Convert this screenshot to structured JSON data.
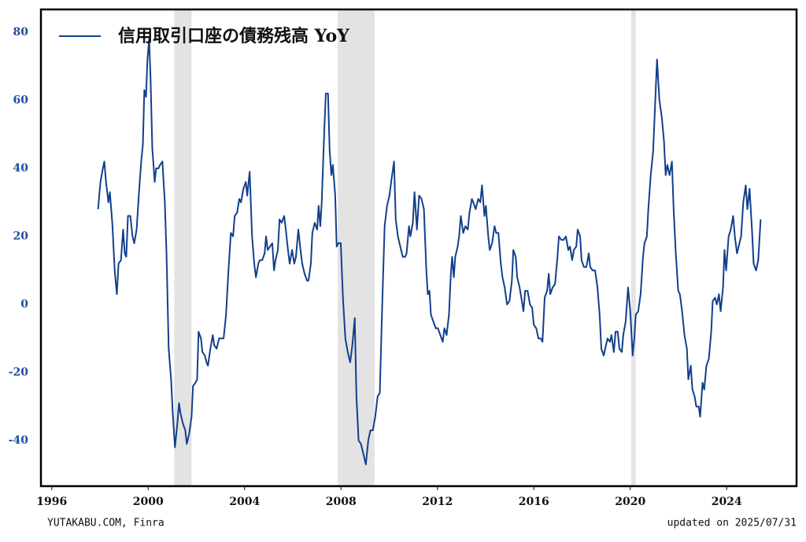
{
  "chart_data": {
    "type": "line",
    "footer_left": "YUTAKABU.COM, Finra",
    "footer_right": "updated on 2025/07/31",
    "xlim": [
      1995.55,
      2026.9
    ],
    "ylim": [
      -53.4,
      86.7
    ],
    "xticks": [
      1996,
      2000,
      2004,
      2008,
      2012,
      2016,
      2020,
      2024
    ],
    "yticks": [
      -40,
      -20,
      0,
      20,
      40,
      60,
      80
    ],
    "legend": "upper left",
    "shaded_periods": [
      {
        "start": 2001.08,
        "end": 2001.8
      },
      {
        "start": 2007.86,
        "end": 2009.39
      },
      {
        "start": 2020.04,
        "end": 2020.23
      }
    ],
    "shade_color": "#e3e3e3",
    "x": [
      1997.92,
      1998.02,
      1998.12,
      1998.18,
      1998.25,
      1998.35,
      1998.41,
      1998.51,
      1998.61,
      1998.7,
      1998.77,
      1998.87,
      1998.96,
      1999.03,
      1999.09,
      1999.16,
      1999.26,
      1999.35,
      1999.42,
      1999.52,
      1999.62,
      1999.71,
      1999.78,
      1999.84,
      1999.91,
      1999.97,
      2000.04,
      2000.1,
      2000.17,
      2000.27,
      2000.33,
      2000.43,
      2000.49,
      2000.59,
      2000.69,
      2000.76,
      2000.85,
      2000.95,
      2001.02,
      2001.11,
      2001.21,
      2001.28,
      2001.34,
      2001.44,
      2001.54,
      2001.6,
      2001.7,
      2001.8,
      2001.86,
      2001.96,
      2002.03,
      2002.09,
      2002.19,
      2002.25,
      2002.35,
      2002.42,
      2002.48,
      2002.58,
      2002.68,
      2002.74,
      2002.84,
      2002.94,
      2003.04,
      2003.13,
      2003.23,
      2003.33,
      2003.43,
      2003.52,
      2003.59,
      2003.69,
      2003.78,
      2003.85,
      2003.95,
      2004.05,
      2004.11,
      2004.21,
      2004.31,
      2004.4,
      2004.47,
      2004.57,
      2004.63,
      2004.73,
      2004.83,
      2004.89,
      2004.96,
      2005.05,
      2005.15,
      2005.22,
      2005.28,
      2005.38,
      2005.45,
      2005.54,
      2005.64,
      2005.71,
      2005.8,
      2005.87,
      2005.97,
      2006.06,
      2006.13,
      2006.23,
      2006.32,
      2006.39,
      2006.49,
      2006.59,
      2006.65,
      2006.75,
      2006.81,
      2006.91,
      2007.01,
      2007.07,
      2007.14,
      2007.2,
      2007.3,
      2007.37,
      2007.46,
      2007.53,
      2007.6,
      2007.66,
      2007.76,
      2007.82,
      2007.89,
      2007.99,
      2008.08,
      2008.18,
      2008.28,
      2008.38,
      2008.47,
      2008.57,
      2008.64,
      2008.73,
      2008.83,
      2008.93,
      2009.03,
      2009.13,
      2009.22,
      2009.32,
      2009.42,
      2009.52,
      2009.61,
      2009.71,
      2009.81,
      2009.91,
      2010.01,
      2010.1,
      2010.2,
      2010.27,
      2010.36,
      2010.46,
      2010.56,
      2010.66,
      2010.72,
      2010.82,
      2010.88,
      2010.98,
      2011.05,
      2011.15,
      2011.24,
      2011.34,
      2011.44,
      2011.54,
      2011.6,
      2011.67,
      2011.73,
      2011.83,
      2011.93,
      2012.02,
      2012.12,
      2012.22,
      2012.29,
      2012.38,
      2012.48,
      2012.55,
      2012.61,
      2012.68,
      2012.74,
      2012.84,
      2012.9,
      2012.97,
      2013.07,
      2013.16,
      2013.26,
      2013.33,
      2013.43,
      2013.49,
      2013.59,
      2013.69,
      2013.78,
      2013.85,
      2013.95,
      2014.01,
      2014.11,
      2014.17,
      2014.27,
      2014.37,
      2014.44,
      2014.53,
      2014.63,
      2014.7,
      2014.79,
      2014.89,
      2014.99,
      2015.09,
      2015.15,
      2015.25,
      2015.31,
      2015.41,
      2015.48,
      2015.57,
      2015.64,
      2015.74,
      2015.84,
      2015.93,
      2016.0,
      2016.1,
      2016.19,
      2016.29,
      2016.36,
      2016.45,
      2016.55,
      2016.62,
      2016.68,
      2016.78,
      2016.88,
      2016.98,
      2017.04,
      2017.14,
      2017.24,
      2017.33,
      2017.43,
      2017.5,
      2017.59,
      2017.66,
      2017.76,
      2017.82,
      2017.92,
      2017.98,
      2018.08,
      2018.18,
      2018.28,
      2018.34,
      2018.44,
      2018.54,
      2018.64,
      2018.73,
      2018.8,
      2018.9,
      2018.96,
      2019.06,
      2019.16,
      2019.22,
      2019.32,
      2019.39,
      2019.48,
      2019.55,
      2019.65,
      2019.71,
      2019.81,
      2019.91,
      2020.0,
      2020.1,
      2020.17,
      2020.23,
      2020.33,
      2020.43,
      2020.53,
      2020.59,
      2020.69,
      2020.75,
      2020.85,
      2020.95,
      2021.01,
      2021.11,
      2021.21,
      2021.31,
      2021.4,
      2021.47,
      2021.54,
      2021.63,
      2021.73,
      2021.8,
      2021.89,
      2021.99,
      2022.06,
      2022.15,
      2022.25,
      2022.35,
      2022.41,
      2022.51,
      2022.58,
      2022.67,
      2022.74,
      2022.84,
      2022.9,
      2023.0,
      2023.07,
      2023.16,
      2023.26,
      2023.36,
      2023.42,
      2023.52,
      2023.59,
      2023.68,
      2023.75,
      2023.85,
      2023.91,
      2023.98,
      2024.08,
      2024.17,
      2024.27,
      2024.34,
      2024.43,
      2024.53,
      2024.6,
      2024.69,
      2024.79,
      2024.86,
      2024.95,
      2025.05,
      2025.12,
      2025.22,
      2025.31,
      2025.41
    ],
    "series": [
      {
        "name": "信用取引口座の債務残高 YoY",
        "color": "#123f8c",
        "values": [
          28,
          36,
          40,
          42,
          36,
          30,
          33,
          24,
          10,
          3,
          12,
          13,
          22,
          15,
          14,
          26,
          26,
          20,
          18,
          22,
          33,
          42,
          47,
          63,
          61,
          72,
          78,
          66,
          46,
          36,
          40,
          40,
          41,
          42,
          30,
          15,
          -13,
          -22,
          -32,
          -42,
          -35,
          -29,
          -32,
          -35,
          -37,
          -41,
          -38,
          -33,
          -24,
          -23,
          -22,
          -8,
          -10,
          -14,
          -15,
          -17,
          -18,
          -13,
          -9,
          -12,
          -13,
          -10,
          -10,
          -10,
          -3,
          10,
          21,
          20,
          26,
          27,
          31,
          30,
          34,
          36,
          32,
          39,
          20,
          12,
          8,
          12,
          13,
          13,
          15,
          20,
          16,
          17,
          18,
          10,
          13,
          16,
          25,
          24,
          26,
          22,
          16,
          12,
          16,
          12,
          14,
          22,
          16,
          12,
          9,
          7,
          7,
          12,
          21,
          24,
          22,
          29,
          23,
          30,
          50,
          62,
          62,
          45,
          38,
          41,
          32,
          17,
          18,
          18,
          2,
          -10,
          -14,
          -17,
          -12,
          -4,
          -27,
          -40,
          -41,
          -44,
          -47,
          -40,
          -37,
          -37,
          -33,
          -27,
          -26,
          0,
          23,
          29,
          32,
          37,
          42,
          25,
          20,
          17,
          14,
          14,
          15,
          23,
          20,
          24,
          33,
          22,
          32,
          31,
          28,
          10,
          3,
          4,
          -3,
          -5,
          -7,
          -7,
          -9,
          -11,
          -7,
          -9,
          -3,
          8,
          14,
          8,
          14,
          17,
          20,
          26,
          21,
          23,
          22,
          27,
          31,
          30,
          28,
          31,
          30,
          35,
          26,
          29,
          20,
          16,
          18,
          23,
          21,
          21,
          12,
          8,
          5,
          0,
          1,
          7,
          16,
          14,
          8,
          5,
          2,
          -2,
          4,
          4,
          0,
          -1,
          -6,
          -7,
          -10,
          -10,
          -11,
          2,
          4,
          9,
          3,
          5,
          6,
          14,
          20,
          19,
          19,
          20,
          16,
          17,
          13,
          16,
          17,
          22,
          20,
          13,
          11,
          11,
          15,
          11,
          10,
          10,
          5,
          -3,
          -13,
          -15,
          -13,
          -10,
          -11,
          -9,
          -14,
          -8,
          -8,
          -13,
          -14,
          -9,
          -5,
          5,
          -2,
          -15,
          -10,
          -3,
          -2,
          3,
          14,
          18,
          20,
          28,
          38,
          45,
          55,
          72,
          60,
          55,
          48,
          38,
          41,
          38,
          42,
          28,
          15,
          4,
          3,
          -2,
          -9,
          -13,
          -22,
          -18,
          -25,
          -27,
          -30,
          -30,
          -33,
          -23,
          -25,
          -18,
          -16,
          -8,
          1,
          2,
          0,
          3,
          -2,
          5,
          16,
          10,
          20,
          22,
          26,
          20,
          15,
          18,
          20,
          30,
          35,
          28,
          34,
          22,
          12,
          10,
          13,
          25
        ]
      }
    ]
  }
}
